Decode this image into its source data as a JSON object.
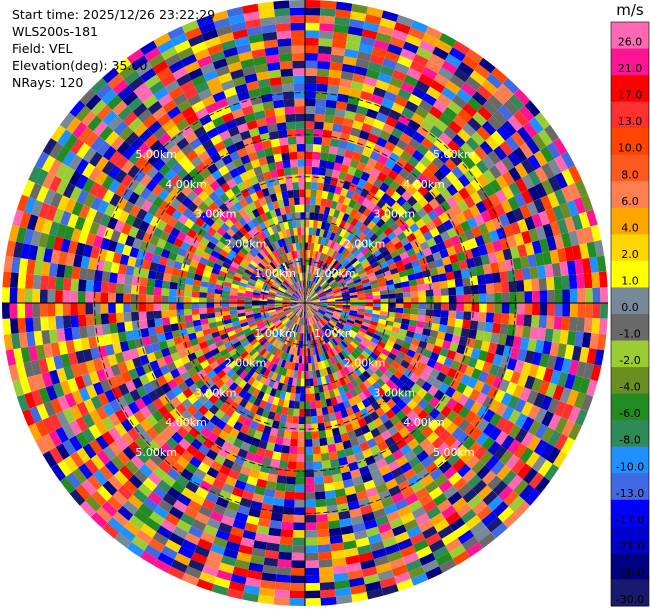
{
  "info": {
    "start_time": "Start time: 2025/12/26 23:22:29",
    "station": "WLS200s-181",
    "field": "Field: VEL",
    "elevation": "Elevation(deg): 35.00",
    "nrays": "NRays: 120"
  },
  "chart_data": {
    "type": "heatmap",
    "projection": "polar-ppi",
    "nrays": 120,
    "range_rings_km": [
      1.0,
      2.0,
      3.0,
      4.0,
      5.0
    ],
    "range_ring_labels": [
      "1.00km",
      "2.00km",
      "3.00km",
      "4.00km",
      "5.00km"
    ],
    "max_range_km": 7.2,
    "colorbar": {
      "unit": "m/s",
      "range": [
        -30.0,
        30.0
      ],
      "ticks": [
        "26.0",
        "21.0",
        "17.0",
        "13.0",
        "10.0",
        "8.0",
        "6.0",
        "4.0",
        "2.0",
        "1.0",
        "0.0",
        "-1.0",
        "-2.0",
        "-4.0",
        "-6.0",
        "-8.0",
        "-10.0",
        "-13.0",
        "-17.0",
        "-21.0",
        "-26.0",
        "-30.0"
      ],
      "colors": [
        "#ff69b4",
        "#ff1493",
        "#ff0000",
        "#ff3030",
        "#ff4500",
        "#ff5a1e",
        "#ff7f50",
        "#ffa500",
        "#ffd700",
        "#ffff00",
        "#778899",
        "#696969",
        "#9acd32",
        "#6b8e23",
        "#228b22",
        "#2e8b57",
        "#1e90ff",
        "#4169e1",
        "#0000ff",
        "#0000cd",
        "#000080",
        "#191970"
      ]
    }
  }
}
